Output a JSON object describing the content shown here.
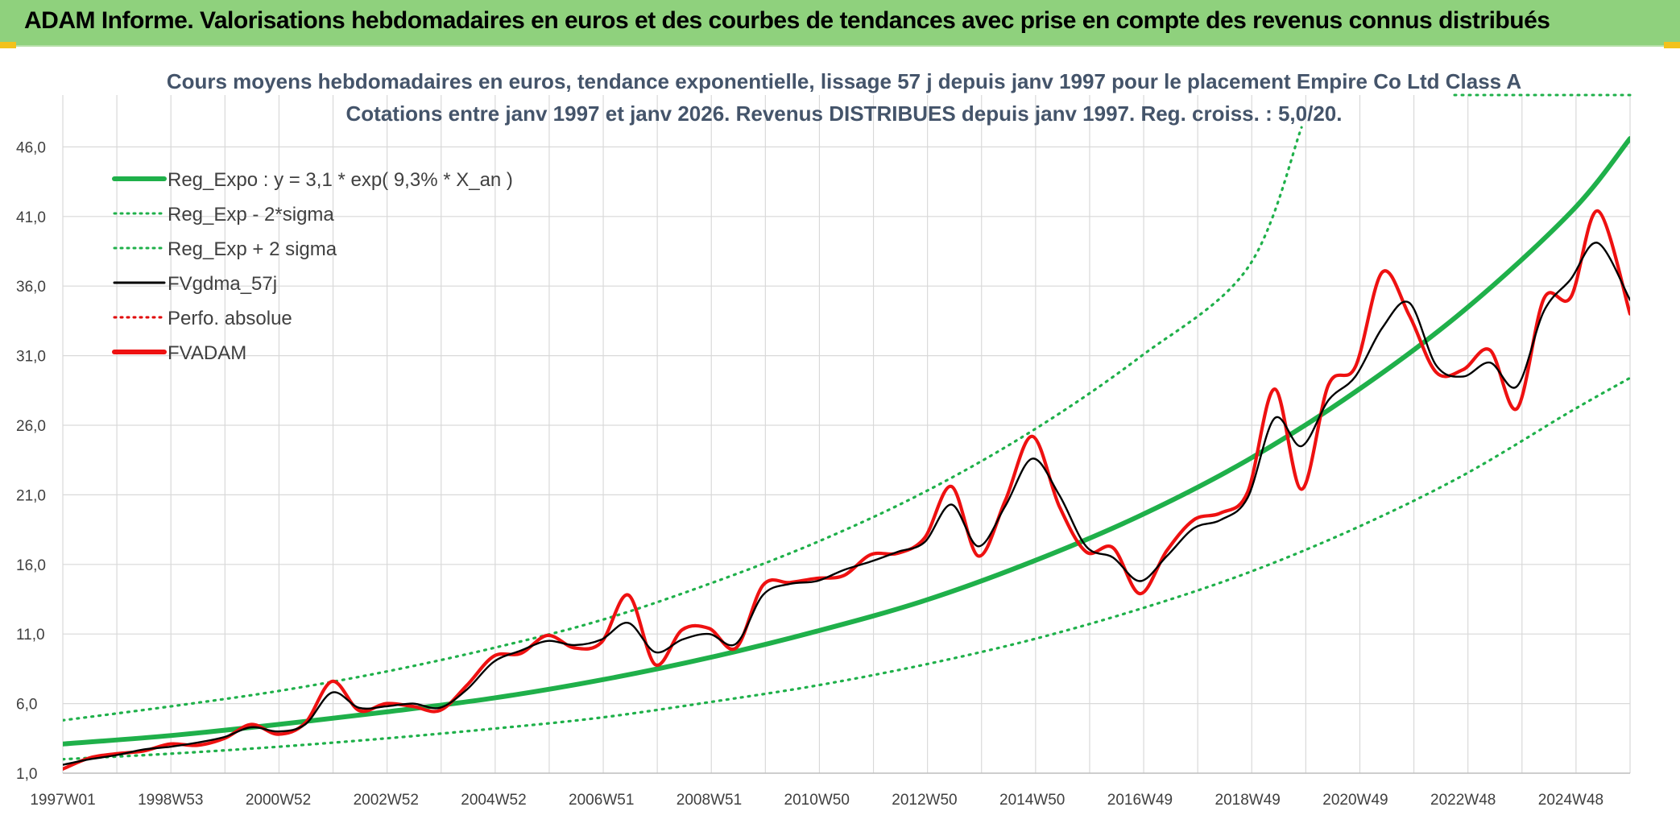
{
  "header": {
    "title": "ADAM Informe. Valorisations hebdomadaires en euros et des courbes de tendances avec prise en compte des revenus connus distribués"
  },
  "chart_data": {
    "type": "line",
    "subtitle_line1": "Cours moyens hebdomadaires en euros, tendance exponentielle, lissage 57 j depuis janv 1997 pour le placement Empire Co Ltd Class A",
    "subtitle_line2": "Cotations entre janv 1997 et janv 2026. Revenus DISTRIBUES depuis janv 1997. Reg. croiss. : 5,0/20.",
    "ylim": [
      1.0,
      48.0
    ],
    "y_ticks": [
      "1,0",
      "6,0",
      "11,0",
      "16,0",
      "21,0",
      "26,0",
      "31,0",
      "36,0",
      "41,0",
      "46,0"
    ],
    "y_tick_values": [
      1,
      6,
      11,
      16,
      21,
      26,
      31,
      36,
      41,
      46
    ],
    "x_range": [
      1997.0,
      2026.1
    ],
    "x_ticks": [
      "1997W01",
      "1998W53",
      "2000W52",
      "2002W52",
      "2004W52",
      "2006W51",
      "2008W51",
      "2010W50",
      "2012W50",
      "2014W50",
      "2016W49",
      "2018W49",
      "2020W49",
      "2022W48",
      "2024W48"
    ],
    "x_tick_values": [
      1997.0,
      1999.0,
      2001.0,
      2003.0,
      2005.0,
      2007.0,
      2009.0,
      2011.0,
      2013.0,
      2015.0,
      2017.0,
      2019.0,
      2021.0,
      2023.0,
      2025.0
    ],
    "grid": true,
    "legend_position": "top-left",
    "legend": [
      {
        "label": "Reg_Expo : y = 3,1 * exp( 9,3% *  X_an )",
        "color": "#1fb04a",
        "style": "solid-thick"
      },
      {
        "label": "Reg_Exp - 2*sigma",
        "color": "#1fb04a",
        "style": "dotted"
      },
      {
        "label": "Reg_Exp + 2 sigma",
        "color": "#1fb04a",
        "style": "dotted"
      },
      {
        "label": "FVgdma_57j",
        "color": "#000000",
        "style": "solid"
      },
      {
        "label": "Perfo. absolue",
        "color": "#e00000",
        "style": "dotted"
      },
      {
        "label": "FVADAM",
        "color": "#ee1111",
        "style": "solid-thick"
      }
    ],
    "series": [
      {
        "name": "Reg_Expo : y = 3,1 * exp( 9,3% *  X_an )",
        "x": [
          1997.0,
          1999.0,
          2001.0,
          2003.0,
          2005.0,
          2007.0,
          2009.0,
          2011.0,
          2013.0,
          2015.0,
          2017.0,
          2019.0,
          2021.0,
          2023.0,
          2025.0,
          2026.1
        ],
        "values": [
          3.1,
          3.7,
          4.5,
          5.4,
          6.4,
          7.7,
          9.3,
          11.2,
          13.4,
          16.2,
          19.5,
          23.5,
          28.4,
          34.2,
          41.3,
          46.6
        ]
      },
      {
        "name": "Reg_Exp - 2*sigma",
        "x": [
          1997.0,
          1999.0,
          2001.0,
          2003.0,
          2005.0,
          2007.0,
          2009.0,
          2011.0,
          2013.0,
          2015.0,
          2017.0,
          2019.0,
          2021.0,
          2023.0,
          2025.0,
          2026.1
        ],
        "values": [
          2.0,
          2.4,
          2.9,
          3.5,
          4.2,
          5.0,
          6.1,
          7.3,
          8.8,
          10.6,
          12.8,
          15.4,
          18.6,
          22.4,
          27.0,
          29.4
        ]
      },
      {
        "name": "Reg_Exp + 2 sigma",
        "x": [
          1997.0,
          1999.0,
          2001.0,
          2003.0,
          2005.0,
          2007.0,
          2009.0,
          2011.0,
          2013.0,
          2015.0,
          2017.0,
          2019.0,
          2020.0
        ],
        "values": [
          4.8,
          5.8,
          6.9,
          8.3,
          10.0,
          12.0,
          14.6,
          17.6,
          21.2,
          25.6,
          30.9,
          37.3,
          47.4
        ]
      },
      {
        "name": "FVgdma_57j",
        "x": [
          1997.0,
          1997.5,
          1998.0,
          1998.5,
          1999.0,
          1999.5,
          2000.0,
          2000.5,
          2001.0,
          2001.5,
          2002.0,
          2002.5,
          2003.0,
          2003.5,
          2004.0,
          2004.5,
          2005.0,
          2005.5,
          2006.0,
          2006.5,
          2007.0,
          2007.5,
          2008.0,
          2008.5,
          2009.0,
          2009.5,
          2010.0,
          2010.5,
          2011.0,
          2011.5,
          2012.0,
          2012.5,
          2013.0,
          2013.5,
          2014.0,
          2014.5,
          2015.0,
          2015.5,
          2016.0,
          2016.5,
          2017.0,
          2017.5,
          2018.0,
          2018.5,
          2019.0,
          2019.5,
          2020.0,
          2020.5,
          2021.0,
          2021.5,
          2022.0,
          2022.5,
          2023.0,
          2023.5,
          2024.0,
          2024.5,
          2025.0,
          2025.5,
          2026.1
        ],
        "values": [
          1.6,
          2.0,
          2.3,
          2.7,
          2.9,
          3.2,
          3.6,
          4.3,
          4.0,
          4.5,
          6.8,
          5.7,
          5.8,
          6.0,
          5.7,
          7.0,
          9.0,
          9.8,
          10.5,
          10.2,
          10.6,
          11.8,
          9.7,
          10.6,
          11.0,
          10.3,
          13.8,
          14.6,
          14.8,
          15.6,
          16.2,
          16.9,
          17.6,
          20.3,
          17.3,
          20.2,
          23.6,
          21.0,
          17.3,
          16.5,
          14.8,
          16.6,
          18.6,
          19.2,
          20.8,
          26.5,
          24.5,
          27.8,
          29.5,
          33.0,
          34.8,
          30.3,
          29.5,
          30.5,
          28.8,
          34.2,
          36.5,
          39.1,
          35.0
        ]
      },
      {
        "name": "FVADAM",
        "x": [
          1997.0,
          1997.5,
          1998.0,
          1998.5,
          1999.0,
          1999.5,
          2000.0,
          2000.5,
          2001.0,
          2001.5,
          2002.0,
          2002.5,
          2003.0,
          2003.5,
          2004.0,
          2004.5,
          2005.0,
          2005.5,
          2006.0,
          2006.5,
          2007.0,
          2007.5,
          2008.0,
          2008.5,
          2009.0,
          2009.5,
          2010.0,
          2010.5,
          2011.0,
          2011.5,
          2012.0,
          2012.5,
          2013.0,
          2013.5,
          2014.0,
          2014.5,
          2015.0,
          2015.5,
          2016.0,
          2016.5,
          2017.0,
          2017.5,
          2018.0,
          2018.5,
          2019.0,
          2019.5,
          2020.0,
          2020.5,
          2021.0,
          2021.5,
          2022.0,
          2022.5,
          2023.0,
          2023.5,
          2024.0,
          2024.5,
          2025.0,
          2025.5,
          2026.1
        ],
        "values": [
          1.3,
          2.1,
          2.4,
          2.6,
          3.1,
          3.0,
          3.5,
          4.5,
          3.8,
          4.6,
          7.6,
          5.5,
          6.0,
          5.8,
          5.5,
          7.3,
          9.4,
          9.6,
          10.9,
          10.0,
          10.4,
          13.8,
          8.8,
          11.3,
          11.4,
          10.0,
          14.5,
          14.7,
          15.0,
          15.2,
          16.7,
          16.8,
          17.9,
          21.6,
          16.6,
          20.6,
          25.2,
          20.2,
          16.9,
          17.2,
          13.9,
          17.0,
          19.2,
          19.7,
          21.2,
          28.6,
          21.4,
          28.9,
          30.2,
          37.0,
          33.9,
          29.8,
          30.0,
          31.4,
          27.2,
          35.1,
          35.2,
          41.4,
          34.0
        ]
      }
    ]
  }
}
